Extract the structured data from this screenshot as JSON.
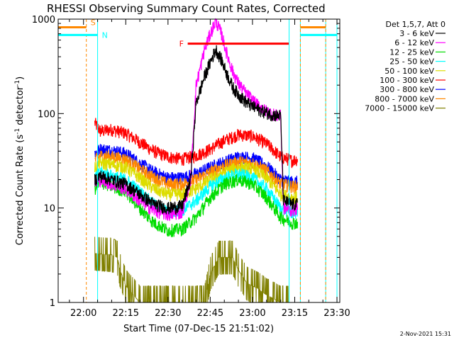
{
  "chart_data": {
    "type": "line",
    "title": "RHESSI Observing Summary Count Rates, Corrected",
    "xlabel": "Start Time (07-Dec-15 21:51:02)",
    "ylabel_main": "Corrected Count Rate (s",
    "ylabel_sup1": "-1",
    "ylabel_mid": " detector",
    "ylabel_sup2": "-1",
    "ylabel_end": ")",
    "y_scale": "log",
    "ylim": [
      1,
      1000
    ],
    "xlim": [
      "21:51",
      "23:31"
    ],
    "x_ticks": [
      "22:00",
      "22:15",
      "22:30",
      "22:45",
      "23:00",
      "23:15",
      "23:30"
    ],
    "y_ticks": [
      "1",
      "10",
      "100",
      "1000"
    ],
    "grid": false,
    "footer": "2-Nov-2021 15:31",
    "legend": {
      "placement": "right",
      "header": "Det 1,5,7, Att 0",
      "entries": [
        {
          "label": "3 - 6 keV",
          "color": "#000000"
        },
        {
          "label": "6 - 12 keV",
          "color": "#ff00ff"
        },
        {
          "label": "12 - 25 keV",
          "color": "#00dd00"
        },
        {
          "label": "25 - 50 keV",
          "color": "#00ffff"
        },
        {
          "label": "50 - 100 keV",
          "color": "#dddd00"
        },
        {
          "label": "100 - 300 keV",
          "color": "#ff0000"
        },
        {
          "label": "300 - 800 keV",
          "color": "#0000ff"
        },
        {
          "label": "800 - 7000 keV",
          "color": "#ff8800"
        },
        {
          "label": "7000 - 15000 keV",
          "color": "#808000"
        }
      ]
    },
    "markers": {
      "flare_label": "F",
      "saa_label": "S",
      "night_label": "N",
      "flare_interval": [
        "22:37",
        "23:13"
      ],
      "flare_level": 550,
      "night_lines": [
        "21:51",
        "22:05",
        "23:13",
        "23:17",
        "23:26",
        "23:30"
      ],
      "saa_lines": [
        "22:01",
        "23:17",
        "23:26"
      ],
      "night_level": 680,
      "saa_level": 820
    },
    "data_start": "22:04",
    "data_end": "23:16",
    "series": [
      {
        "color": "#ff0000",
        "points": [
          [
            "22:04",
            80
          ],
          [
            "22:06",
            65
          ],
          [
            "22:10",
            68
          ],
          [
            "22:15",
            62
          ],
          [
            "22:20",
            50
          ],
          [
            "22:25",
            40
          ],
          [
            "22:30",
            35
          ],
          [
            "22:35",
            33
          ],
          [
            "22:40",
            36
          ],
          [
            "22:45",
            42
          ],
          [
            "22:50",
            52
          ],
          [
            "22:55",
            60
          ],
          [
            "23:00",
            58
          ],
          [
            "23:05",
            48
          ],
          [
            "23:10",
            35
          ],
          [
            "23:14",
            32
          ],
          [
            "23:16",
            33
          ]
        ]
      },
      {
        "color": "#0000ff",
        "points": [
          [
            "22:04",
            38
          ],
          [
            "22:06",
            42
          ],
          [
            "22:10",
            41
          ],
          [
            "22:15",
            38
          ],
          [
            "22:20",
            30
          ],
          [
            "22:25",
            24
          ],
          [
            "22:30",
            21
          ],
          [
            "22:35",
            21
          ],
          [
            "22:40",
            23
          ],
          [
            "22:45",
            27
          ],
          [
            "22:50",
            31
          ],
          [
            "22:55",
            35
          ],
          [
            "23:00",
            34
          ],
          [
            "23:05",
            28
          ],
          [
            "23:10",
            20
          ],
          [
            "23:14",
            19
          ],
          [
            "23:16",
            19
          ]
        ]
      },
      {
        "color": "#ff8800",
        "points": [
          [
            "22:04",
            32
          ],
          [
            "22:06",
            36
          ],
          [
            "22:10",
            35
          ],
          [
            "22:15",
            33
          ],
          [
            "22:20",
            26
          ],
          [
            "22:25",
            21
          ],
          [
            "22:30",
            18
          ],
          [
            "22:35",
            18
          ],
          [
            "22:40",
            20
          ],
          [
            "22:45",
            24
          ],
          [
            "22:50",
            28
          ],
          [
            "22:55",
            31
          ],
          [
            "23:00",
            30
          ],
          [
            "23:05",
            25
          ],
          [
            "23:10",
            18
          ],
          [
            "23:14",
            17
          ],
          [
            "23:16",
            17
          ]
        ]
      },
      {
        "color": "#dddd00",
        "points": [
          [
            "22:04",
            27
          ],
          [
            "22:06",
            30
          ],
          [
            "22:10",
            29
          ],
          [
            "22:15",
            27
          ],
          [
            "22:20",
            21
          ],
          [
            "22:25",
            16
          ],
          [
            "22:30",
            14
          ],
          [
            "22:35",
            14
          ],
          [
            "22:40",
            16
          ],
          [
            "22:45",
            20
          ],
          [
            "22:50",
            24
          ],
          [
            "22:55",
            27
          ],
          [
            "23:00",
            26
          ],
          [
            "23:05",
            21
          ],
          [
            "23:10",
            14
          ],
          [
            "23:14",
            13
          ],
          [
            "23:16",
            13
          ]
        ]
      },
      {
        "color": "#00ffff",
        "points": [
          [
            "22:04",
            21
          ],
          [
            "22:06",
            24
          ],
          [
            "22:10",
            22
          ],
          [
            "22:15",
            20
          ],
          [
            "22:20",
            15
          ],
          [
            "22:25",
            11
          ],
          [
            "22:30",
            9
          ],
          [
            "22:35",
            9.5
          ],
          [
            "22:40",
            12
          ],
          [
            "22:45",
            17
          ],
          [
            "22:50",
            21
          ],
          [
            "22:55",
            23
          ],
          [
            "23:00",
            21
          ],
          [
            "23:05",
            16
          ],
          [
            "23:10",
            10
          ],
          [
            "23:14",
            9
          ],
          [
            "23:16",
            9
          ]
        ]
      },
      {
        "color": "#00dd00",
        "points": [
          [
            "22:04",
            16
          ],
          [
            "22:06",
            19
          ],
          [
            "22:10",
            17
          ],
          [
            "22:15",
            15
          ],
          [
            "22:20",
            10
          ],
          [
            "22:25",
            7
          ],
          [
            "22:30",
            5.8
          ],
          [
            "22:35",
            6
          ],
          [
            "22:40",
            8
          ],
          [
            "22:45",
            13
          ],
          [
            "22:50",
            18
          ],
          [
            "22:55",
            20
          ],
          [
            "23:00",
            18
          ],
          [
            "23:05",
            13
          ],
          [
            "23:10",
            8
          ],
          [
            "23:14",
            7
          ],
          [
            "23:16",
            7
          ]
        ]
      },
      {
        "color": "#ff00ff",
        "points": [
          [
            "22:04",
            18
          ],
          [
            "22:06",
            20
          ],
          [
            "22:10",
            18
          ],
          [
            "22:15",
            16
          ],
          [
            "22:20",
            12
          ],
          [
            "22:25",
            9.5
          ],
          [
            "22:30",
            8.5
          ],
          [
            "22:35",
            9
          ],
          [
            "22:38",
            20
          ],
          [
            "22:40",
            200
          ],
          [
            "22:43",
            480
          ],
          [
            "22:45",
            700
          ],
          [
            "22:47",
            960
          ],
          [
            "22:49",
            700
          ],
          [
            "22:51",
            420
          ],
          [
            "22:53",
            280
          ],
          [
            "22:55",
            210
          ],
          [
            "22:58",
            160
          ],
          [
            "23:01",
            130
          ],
          [
            "23:04",
            110
          ],
          [
            "23:07",
            100
          ],
          [
            "23:09",
            95
          ],
          [
            "23:10",
            95
          ],
          [
            "23:11",
            10
          ],
          [
            "23:14",
            9.5
          ],
          [
            "23:16",
            10
          ]
        ]
      },
      {
        "color": "#000000",
        "points": [
          [
            "22:04",
            20
          ],
          [
            "22:06",
            22
          ],
          [
            "22:10",
            20
          ],
          [
            "22:15",
            18
          ],
          [
            "22:20",
            14
          ],
          [
            "22:25",
            11
          ],
          [
            "22:30",
            10
          ],
          [
            "22:35",
            10.5
          ],
          [
            "22:38",
            20
          ],
          [
            "22:40",
            130
          ],
          [
            "22:43",
            250
          ],
          [
            "22:45",
            350
          ],
          [
            "22:47",
            480
          ],
          [
            "22:49",
            370
          ],
          [
            "22:51",
            260
          ],
          [
            "22:53",
            190
          ],
          [
            "22:55",
            160
          ],
          [
            "22:58",
            130
          ],
          [
            "23:01",
            115
          ],
          [
            "23:04",
            105
          ],
          [
            "23:07",
            98
          ],
          [
            "23:09",
            95
          ],
          [
            "23:10",
            96
          ],
          [
            "23:11",
            12
          ],
          [
            "23:14",
            11
          ],
          [
            "23:16",
            11
          ]
        ]
      },
      {
        "color": "#808000",
        "points": [
          [
            "22:04",
            3.3
          ],
          [
            "22:10",
            3.2
          ],
          [
            "22:12",
            3.0
          ],
          [
            "22:13",
            2.2
          ],
          [
            "22:15",
            1.5
          ],
          [
            "22:20",
            1.0
          ],
          [
            "22:43",
            1.0
          ],
          [
            "22:45",
            2.0
          ],
          [
            "22:48",
            3.0
          ],
          [
            "22:53",
            3.0
          ],
          [
            "22:55",
            2.2
          ],
          [
            "22:58",
            1.6
          ],
          [
            "23:02",
            1.4
          ],
          [
            "23:05",
            1.2
          ],
          [
            "23:10",
            1.0
          ],
          [
            "23:13",
            1.0
          ]
        ]
      }
    ]
  }
}
